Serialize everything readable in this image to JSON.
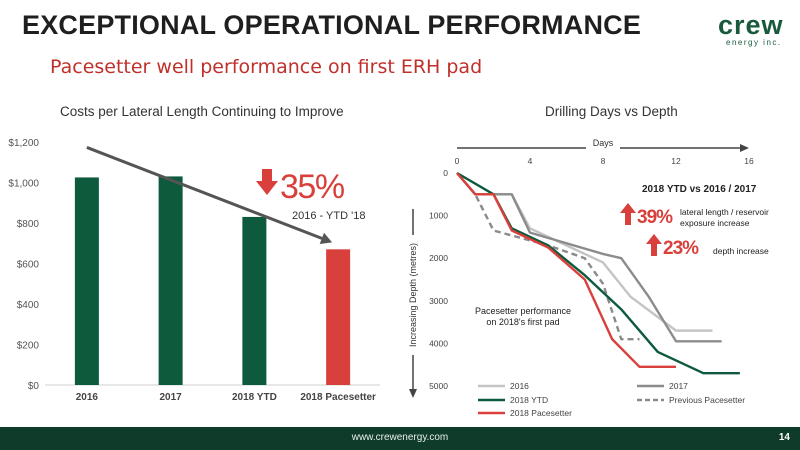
{
  "header": {
    "title": "EXCEPTIONAL OPERATIONAL PERFORMANCE",
    "subtitle": "Pacesetter well performance on first ERH pad",
    "logo_text": "crew",
    "logo_subtext": "energy inc."
  },
  "footer": {
    "url": "www.crewenergy.com",
    "page_number": "14"
  },
  "colors": {
    "green": "#0d5a3c",
    "red": "#d9403c",
    "dark_gray": "#555555",
    "light_gray": "#bdbdbd",
    "mid_gray": "#8c8c8c"
  },
  "chart_data": [
    {
      "type": "bar",
      "title": "Costs per Lateral Length Continuing to Improve",
      "categories": [
        "2016",
        "2017",
        "2018 YTD",
        "2018 Pacesetter"
      ],
      "values": [
        1025,
        1030,
        830,
        670
      ],
      "bar_colors": [
        "#0d5a3c",
        "#0d5a3c",
        "#0d5a3c",
        "#d9403c"
      ],
      "ylim": [
        0,
        1200
      ],
      "y_ticks": [
        "$0",
        "$200",
        "$400",
        "$600",
        "$800",
        "$1,000",
        "$1,200"
      ],
      "grid": false,
      "callout": {
        "value": "35%",
        "label": "2016 - YTD '18"
      }
    },
    {
      "type": "line",
      "title": "Drilling Days vs Depth",
      "x_axis_label": "Days",
      "y_axis_label": "Increasing Depth (metres)",
      "xlim": [
        0,
        16
      ],
      "ylim": [
        0,
        5000
      ],
      "x_ticks": [
        0,
        4,
        8,
        12,
        16
      ],
      "y_ticks": [
        0,
        1000,
        2000,
        3000,
        4000,
        5000
      ],
      "y_reversed": true,
      "series": [
        {
          "name": "2016",
          "color": "#c4c4c4",
          "dash": false,
          "points": [
            [
              0,
              0
            ],
            [
              1,
              500
            ],
            [
              3,
              500
            ],
            [
              4,
              1300
            ],
            [
              7,
              1900
            ],
            [
              8,
              2100
            ],
            [
              9.5,
              2900
            ],
            [
              12,
              3700
            ],
            [
              14,
              3700
            ]
          ]
        },
        {
          "name": "2017",
          "color": "#8c8c8c",
          "dash": false,
          "points": [
            [
              0,
              0
            ],
            [
              1,
              500
            ],
            [
              3,
              500
            ],
            [
              4,
              1400
            ],
            [
              8,
              1900
            ],
            [
              9,
              2000
            ],
            [
              10.5,
              2900
            ],
            [
              12,
              3950
            ],
            [
              14.5,
              3950
            ]
          ]
        },
        {
          "name": "2018 YTD",
          "color": "#0d5a3c",
          "dash": false,
          "points": [
            [
              0,
              0
            ],
            [
              2,
              500
            ],
            [
              3,
              1300
            ],
            [
              5,
              1700
            ],
            [
              7,
              2400
            ],
            [
              9,
              3200
            ],
            [
              11,
              4200
            ],
            [
              13.5,
              4700
            ],
            [
              15.5,
              4700
            ]
          ]
        },
        {
          "name": "Previous Pacesetter",
          "color": "#8a8a8a",
          "dash": true,
          "points": [
            [
              0,
              0
            ],
            [
              1,
              500
            ],
            [
              2,
              1350
            ],
            [
              5,
              1700
            ],
            [
              7,
              2000
            ],
            [
              8,
              2600
            ],
            [
              9,
              3900
            ],
            [
              10,
              3900
            ]
          ]
        },
        {
          "name": "2018 Pacesetter",
          "color": "#d9403c",
          "dash": false,
          "points": [
            [
              0,
              0
            ],
            [
              1,
              500
            ],
            [
              2,
              500
            ],
            [
              3,
              1350
            ],
            [
              5,
              1750
            ],
            [
              7,
              2500
            ],
            [
              8.5,
              3900
            ],
            [
              10,
              4550
            ],
            [
              12,
              4550
            ]
          ]
        }
      ],
      "legend_position": "bottom",
      "annotations": {
        "comparison_title": "2018 YTD vs 2016 / 2017",
        "items": [
          {
            "value": "39%",
            "label_line1": "lateral length / reservoir",
            "label_line2": "exposure increase"
          },
          {
            "value": "23%",
            "label_line1": "depth increase",
            "label_line2": ""
          }
        ],
        "pacesetter_note_line1": "Pacesetter performance",
        "pacesetter_note_line2": "on 2018's first pad"
      }
    }
  ]
}
